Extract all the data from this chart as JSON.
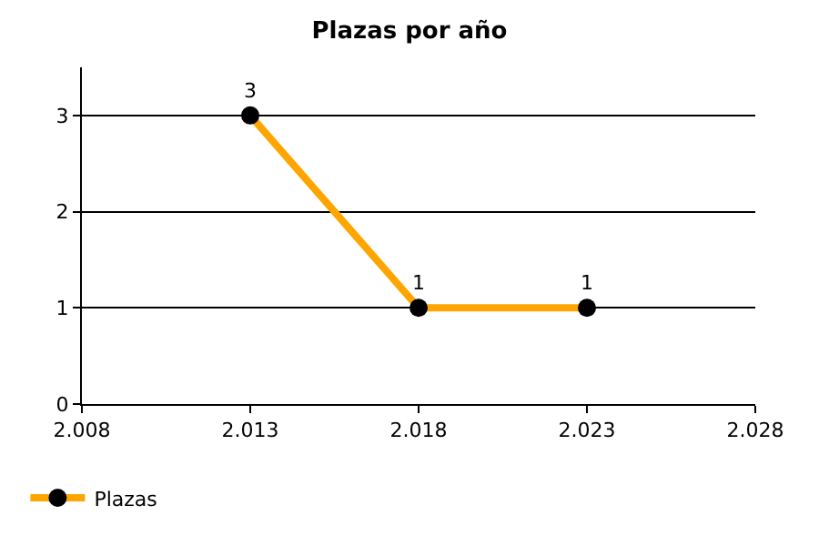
{
  "chart_data": {
    "type": "line",
    "title": "Plazas por año",
    "x": [
      2013,
      2018,
      2023
    ],
    "series": [
      {
        "name": "Plazas",
        "color": "#ffa500",
        "values": [
          3,
          1,
          1
        ]
      }
    ],
    "xlim": [
      2008,
      2028
    ],
    "xticks": [
      {
        "value": 2008,
        "label": "2.008"
      },
      {
        "value": 2013,
        "label": "2.013"
      },
      {
        "value": 2018,
        "label": "2.018"
      },
      {
        "value": 2023,
        "label": "2.023"
      },
      {
        "value": 2028,
        "label": "2.028"
      }
    ],
    "ylim": [
      0,
      3.5
    ],
    "yticks": [
      0,
      1,
      2,
      3
    ],
    "grid": "y",
    "legend": "bottom left",
    "marker": "circle",
    "line_style": "solid",
    "data_labels": true
  }
}
